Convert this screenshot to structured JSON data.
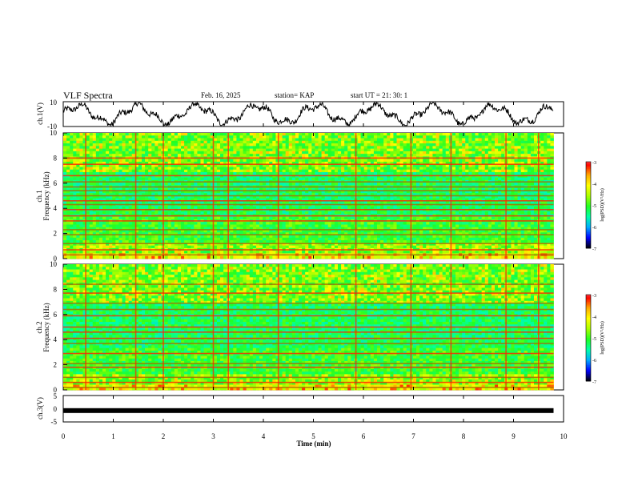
{
  "header": {
    "title": "VLF Spectra",
    "date": "Feb. 16, 2025",
    "station": "station= KAP",
    "start": "start  UT =   21: 30: 1"
  },
  "chart_data": [
    {
      "type": "line",
      "panel": "ch1-waveform",
      "ylabel": "ch.1(V)",
      "ylim": [
        -10,
        10
      ],
      "yticks": [
        "10",
        "-10"
      ],
      "xlim": [
        0,
        10
      ],
      "note_values": "amplitude oscillates roughly between -9 and +9 V over 0 to 9.8 min"
    },
    {
      "type": "heatmap",
      "panel": "ch1-spectrogram",
      "ylabel_line1": "ch.1",
      "ylabel_line2": "Frequency (kHz)",
      "ylim": [
        0,
        10
      ],
      "yticks": [
        "0",
        "2",
        "4",
        "6",
        "8",
        "10"
      ],
      "xlim": [
        0,
        9.8
      ],
      "colorbar": {
        "label": "log(PSD)(V²/Hz)",
        "range": [
          -7,
          -3
        ],
        "ticks": [
          "-3",
          "-4",
          "-5",
          "-6",
          "-7"
        ]
      },
      "bands_khz": [
        0.3,
        0.7,
        1.2,
        1.9,
        2.3,
        3.0,
        3.4,
        3.9,
        4.3,
        4.6,
        5.0,
        5.4,
        5.7,
        6.1,
        6.6,
        7.5,
        8.0
      ],
      "vertical_events_min": [
        0.45,
        1.45,
        2.0,
        3.0,
        3.3,
        4.3,
        5.85,
        6.95,
        7.75,
        8.85,
        9.5
      ]
    },
    {
      "type": "heatmap",
      "panel": "ch2-spectrogram",
      "ylabel_line1": "ch.2",
      "ylabel_line2": "Frequency (kHz)",
      "ylim": [
        0,
        10
      ],
      "yticks": [
        "0",
        "2",
        "4",
        "6",
        "8",
        "10"
      ],
      "xlim": [
        0,
        9.8
      ],
      "colorbar": {
        "label": "log(PSD)(V²/Hz)",
        "range": [
          -7,
          -3
        ],
        "ticks": [
          "-3",
          "-4",
          "-5",
          "-6",
          "-7"
        ]
      },
      "bands_khz": [
        0.2,
        0.6,
        1.0,
        1.8,
        2.1,
        2.9,
        3.7,
        4.1,
        4.6,
        5.0,
        5.9,
        6.4,
        6.9,
        7.7,
        8.4
      ],
      "vertical_events_min": [
        0.45,
        1.45,
        2.0,
        3.0,
        3.3,
        4.3,
        5.85,
        6.95,
        7.75,
        8.85,
        9.5
      ]
    },
    {
      "type": "line",
      "panel": "ch3-waveform",
      "ylabel": "ch.3(V)",
      "ylim": [
        -5,
        5
      ],
      "yticks": [
        "5",
        "0",
        "-5"
      ],
      "xlim": [
        0,
        10
      ],
      "xlabel": "Time (min)",
      "xticks": [
        "0",
        "1",
        "2",
        "3",
        "4",
        "5",
        "6",
        "7",
        "8",
        "9",
        "10"
      ],
      "note_values": "flat thick trace near -0.7 V from 0 to 9.8 min"
    }
  ],
  "colormap": [
    "#000000",
    "#0000ff",
    "#00aaff",
    "#00ffaa",
    "#22ff22",
    "#aaff00",
    "#ffff00",
    "#ffaa00",
    "#ff0000",
    "#ffffff"
  ]
}
